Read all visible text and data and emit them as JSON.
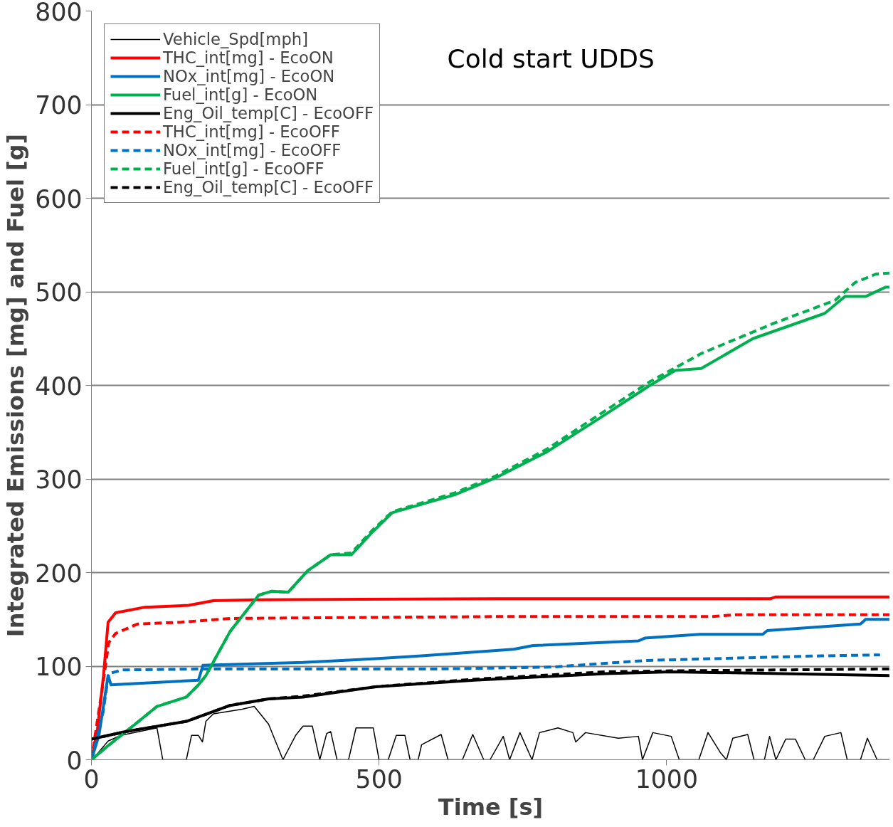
{
  "chart_data": {
    "type": "line",
    "xlabel": "Time [s]",
    "ylabel": "Integrated Emissions [mg] and Fuel [g]",
    "annotations": [
      "Cold start UDDS"
    ],
    "xlim": [
      0,
      1388
    ],
    "xticks": [
      0,
      500,
      1000
    ],
    "ylim": [
      0,
      800
    ],
    "yticks": [
      0,
      100,
      200,
      300,
      400,
      500,
      600,
      700,
      800
    ],
    "grid": "y",
    "legend": "top left",
    "series": [
      {
        "name": "Vehicle_Spd[mph]",
        "color": "#000000",
        "line_style": "solid",
        "x": [
          0,
          4,
          29,
          51,
          114,
          124,
          165,
          174,
          186,
          193,
          199,
          212,
          262,
          283,
          308,
          333,
          355,
          368,
          384,
          397,
          409,
          416,
          427,
          447,
          460,
          490,
          500,
          516,
          530,
          545,
          554,
          568,
          574,
          608,
          620,
          645,
          663,
          682,
          693,
          716,
          727,
          745,
          766,
          779,
          811,
          837,
          842,
          859,
          916,
          951,
          958,
          976,
          1008,
          1022,
          1056,
          1072,
          1093,
          1104,
          1115,
          1141,
          1152,
          1170,
          1179,
          1190,
          1207,
          1224,
          1241,
          1255,
          1275,
          1303,
          1314,
          1337,
          1349,
          1366,
          1388
        ],
        "values": [
          0,
          2,
          20,
          26,
          34,
          0,
          0,
          26,
          26,
          19,
          41,
          49,
          54,
          57,
          38,
          0,
          26,
          36,
          36,
          0,
          28,
          30,
          0,
          0,
          34,
          34,
          0,
          0,
          26,
          26,
          0,
          0,
          16,
          27,
          0,
          0,
          27,
          0,
          0,
          25,
          0,
          29,
          0,
          29,
          34,
          29,
          19,
          29,
          23,
          25,
          0,
          29,
          25,
          0,
          0,
          29,
          8,
          0,
          23,
          27,
          0,
          0,
          25,
          0,
          22,
          22,
          0,
          0,
          25,
          29,
          0,
          0,
          23,
          0,
          0
        ]
      },
      {
        "name": "THC_int[mg] - EcoON",
        "color": "#ff0000",
        "line_style": "solid",
        "x": [
          0,
          10,
          21,
          29,
          42,
          93,
          169,
          212,
          283,
          700,
          1180,
          1190,
          1388
        ],
        "values": [
          0,
          30,
          90,
          147,
          157,
          163,
          165,
          170,
          171,
          172,
          172,
          174,
          174
        ]
      },
      {
        "name": "NOx_int[mg] - EcoON",
        "color": "#0070c0",
        "line_style": "solid",
        "x": [
          0,
          13,
          29,
          34,
          63,
          186,
          194,
          368,
          494,
          574,
          734,
          768,
          951,
          962,
          1058,
          1167,
          1175,
          1337,
          1346,
          1388
        ],
        "values": [
          0,
          26,
          90,
          80,
          81,
          85,
          101,
          104,
          108,
          111,
          118,
          122,
          127,
          130,
          134,
          134,
          138,
          145,
          150,
          150
        ]
      },
      {
        "name": "Fuel_int[g] - EcoON",
        "color": "#00b050",
        "line_style": "solid",
        "x": [
          0,
          29,
          72,
          114,
          165,
          186,
          199,
          241,
          291,
          313,
          342,
          376,
          416,
          452,
          488,
          523,
          631,
          702,
          792,
          881,
          971,
          1015,
          1060,
          1150,
          1275,
          1310,
          1346,
          1381,
          1388
        ],
        "values": [
          0,
          15,
          36,
          57,
          67,
          80,
          90,
          137,
          176,
          180,
          179,
          202,
          219,
          219,
          243,
          264,
          283,
          301,
          329,
          364,
          400,
          416,
          418,
          450,
          477,
          495,
          495,
          505,
          505
        ]
      },
      {
        "name": "Eng_Oil_temp[C] - EcoOFF",
        "color": "#000000",
        "line_style": "solid",
        "x": [
          0,
          59,
          165,
          241,
          308,
          368,
          494,
          665,
          894,
          1008,
          1200,
          1388
        ],
        "values": [
          22,
          30,
          41,
          58,
          65,
          67,
          78,
          85,
          92,
          94,
          92,
          90
        ]
      },
      {
        "name": "THC_int[mg] - EcoOFF",
        "color": "#ff0000",
        "line_style": "dashed",
        "x": [
          0,
          21,
          30,
          42,
          80,
          156,
          241,
          700,
          1080,
          1120,
          1388
        ],
        "values": [
          0,
          85,
          125,
          135,
          145,
          147,
          151,
          153,
          153,
          155,
          155
        ]
      },
      {
        "name": "NOx_int[mg] - EcoOFF",
        "color": "#0070c0",
        "line_style": "dashed",
        "x": [
          0,
          20,
          30,
          54,
          200,
          600,
          800,
          962,
          1081,
          1269,
          1371
        ],
        "values": [
          0,
          50,
          92,
          96,
          97,
          97,
          99,
          106,
          108,
          111,
          112
        ]
      },
      {
        "name": "Fuel_int[g] - EcoOFF",
        "color": "#00b050",
        "line_style": "dashed",
        "x": [
          0,
          29,
          72,
          114,
          165,
          186,
          199,
          241,
          291,
          313,
          342,
          376,
          416,
          452,
          488,
          523,
          631,
          702,
          792,
          881,
          971,
          1060,
          1185,
          1293,
          1328,
          1364,
          1388
        ],
        "values": [
          0,
          15,
          36,
          57,
          67,
          80,
          90,
          137,
          176,
          180,
          179,
          202,
          219,
          221,
          245,
          265,
          285,
          303,
          332,
          368,
          404,
          434,
          466,
          491,
          510,
          519,
          520
        ]
      },
      {
        "name": "Eng_Oil_temp[C] - EcoOFF",
        "color": "#000000",
        "line_style": "dashed",
        "x": [
          0,
          59,
          165,
          241,
          308,
          368,
          494,
          665,
          894,
          1008,
          1200,
          1388
        ],
        "values": [
          22,
          30,
          41,
          58,
          65,
          68,
          78,
          86,
          94,
          95,
          96,
          97
        ]
      }
    ]
  }
}
